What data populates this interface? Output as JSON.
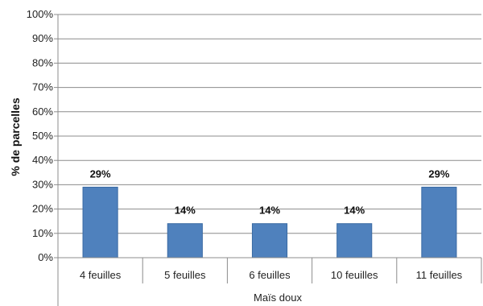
{
  "chart_data": {
    "type": "bar",
    "categories": [
      "4 feuilles",
      "5 feuilles",
      "6 feuilles",
      "10 feuilles",
      "11 feuilles"
    ],
    "values": [
      29,
      14,
      14,
      14,
      29
    ],
    "data_labels": [
      "29%",
      "14%",
      "14%",
      "14%",
      "29%"
    ],
    "title": "",
    "ylabel": "% de parcelles",
    "group_label": "Maïs doux",
    "ylim": [
      0,
      100
    ],
    "yticks": [
      "0%",
      "10%",
      "20%",
      "30%",
      "40%",
      "50%",
      "60%",
      "70%",
      "80%",
      "90%",
      "100%"
    ],
    "bar_color": "#4f81bd",
    "grid": true,
    "legend": "none"
  }
}
